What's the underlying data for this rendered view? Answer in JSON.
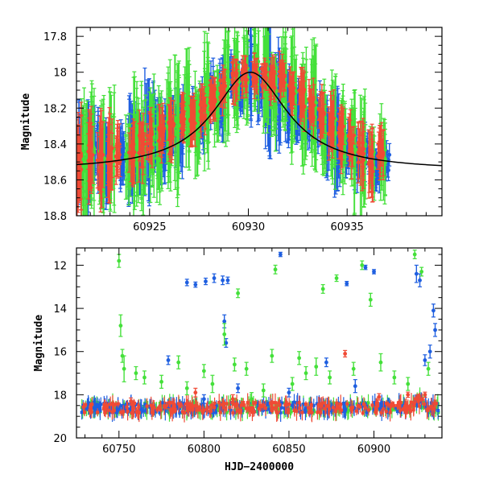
{
  "chart_data": [
    {
      "type": "scatter",
      "panel": "top",
      "title": "",
      "xlabel": "",
      "ylabel": "Magnitude",
      "xlim": [
        60921.3,
        60939.8
      ],
      "ylim": [
        18.8,
        17.75
      ],
      "y_inverted": true,
      "x_ticks": [
        60925,
        60930,
        60935
      ],
      "x_tick_labels": [
        "60925",
        "60930",
        "60935"
      ],
      "y_ticks": [
        17.8,
        18,
        18.2,
        18.4,
        18.6,
        18.8
      ],
      "y_tick_labels": [
        "17.8",
        "18",
        "18.2",
        "18.4",
        "18.6",
        "18.8"
      ],
      "series": [
        {
          "color": "#1f5fe0",
          "x": [
            60921.5,
            60921.9,
            60922.3,
            60922.8,
            60923.6,
            60924.0,
            60924.4,
            60924.9,
            60925.3,
            60925.7,
            60926.2,
            60926.6,
            60927.1,
            60927.6,
            60928.1,
            60928.6,
            60929.2,
            60929.6,
            60930.1,
            60930.6,
            60931.0,
            60931.5,
            60932.0,
            60932.5,
            60933.0,
            60933.5,
            60934.0,
            60934.5,
            60935.0,
            60935.5,
            60936.0,
            60936.5,
            60937.0
          ],
          "y": [
            18.45,
            18.5,
            18.4,
            18.52,
            18.48,
            18.45,
            18.42,
            18.38,
            18.33,
            18.4,
            18.3,
            18.32,
            18.22,
            18.25,
            18.12,
            18.15,
            18.05,
            18.1,
            18.0,
            18.12,
            18.05,
            18.12,
            18.2,
            18.22,
            18.28,
            18.25,
            18.35,
            18.4,
            18.45,
            18.5,
            18.45,
            18.55,
            18.5
          ],
          "err": [
            0.25,
            0.3,
            0.2,
            0.2,
            0.15,
            0.25,
            0.22,
            0.3,
            0.2,
            0.2,
            0.15,
            0.22,
            0.1,
            0.15,
            0.12,
            0.2,
            0.1,
            0.15,
            0.25,
            0.12,
            0.35,
            0.25,
            0.18,
            0.15,
            0.12,
            0.15,
            0.18,
            0.25,
            0.12,
            0.12,
            0.1,
            0.08,
            0.06
          ]
        },
        {
          "color": "#44e03a",
          "x": [
            60921.7,
            60922.1,
            60922.6,
            60923.1,
            60923.9,
            60924.3,
            60924.7,
            60925.1,
            60925.5,
            60926.0,
            60926.4,
            60926.9,
            60927.4,
            60927.9,
            60928.4,
            60928.9,
            60929.4,
            60929.9,
            60930.4,
            60930.9,
            60931.3,
            60931.8,
            60932.3,
            60932.8,
            60933.3,
            60933.8,
            60934.3,
            60934.8,
            60935.3,
            60935.8,
            60936.3,
            60936.8
          ],
          "y": [
            18.5,
            18.4,
            18.5,
            18.45,
            18.5,
            18.4,
            18.45,
            18.35,
            18.42,
            18.3,
            18.3,
            18.2,
            18.3,
            18.15,
            18.2,
            18.05,
            18.05,
            18.0,
            17.95,
            18.0,
            18.15,
            18.05,
            18.1,
            18.2,
            18.2,
            18.3,
            18.3,
            18.35,
            18.4,
            18.45,
            18.5,
            18.45
          ],
          "err": [
            0.35,
            0.3,
            0.3,
            0.3,
            0.2,
            0.35,
            0.3,
            0.3,
            0.25,
            0.3,
            0.35,
            0.28,
            0.25,
            0.3,
            0.2,
            0.28,
            0.25,
            0.22,
            0.2,
            0.3,
            0.25,
            0.22,
            0.3,
            0.28,
            0.3,
            0.22,
            0.28,
            0.25,
            0.3,
            0.3,
            0.15,
            0.2
          ]
        },
        {
          "color": "#f04a35",
          "x": [
            60921.4,
            60922.0,
            60922.5,
            60923.0,
            60923.4,
            60924.1,
            60924.6,
            60925.0,
            60925.6,
            60926.1,
            60926.7,
            60927.2,
            60927.7,
            60928.2,
            60928.7,
            60929.3,
            60929.8,
            60930.3,
            60930.8,
            60931.2,
            60931.7,
            60932.2,
            60932.7,
            60933.2,
            60933.7,
            60934.2,
            60934.7,
            60935.2,
            60935.7,
            60936.2,
            60936.7
          ],
          "y": [
            18.5,
            18.45,
            18.5,
            18.48,
            18.45,
            18.45,
            18.4,
            18.38,
            18.35,
            18.32,
            18.28,
            18.25,
            18.2,
            18.15,
            18.1,
            18.05,
            18.02,
            18.0,
            18.02,
            18.05,
            18.02,
            18.1,
            18.15,
            18.2,
            18.25,
            18.3,
            18.35,
            18.4,
            18.45,
            18.5,
            18.45
          ],
          "err": [
            0.3,
            0.2,
            0.25,
            0.2,
            0.12,
            0.15,
            0.15,
            0.12,
            0.12,
            0.12,
            0.1,
            0.12,
            0.1,
            0.1,
            0.08,
            0.1,
            0.08,
            0.08,
            0.06,
            0.08,
            0.1,
            0.1,
            0.12,
            0.1,
            0.12,
            0.15,
            0.15,
            0.12,
            0.15,
            0.18,
            0.12
          ]
        }
      ],
      "model_curve": {
        "color": "#000000",
        "baseline": 18.55,
        "peak_mag": 18.0,
        "peak_time": 60930.1,
        "width_days": 2.3,
        "x_range": [
          60921.3,
          60939.8
        ]
      }
    },
    {
      "type": "scatter",
      "panel": "bottom",
      "title": "",
      "xlabel": "HJD−2400000",
      "ylabel": "Magnitude",
      "xlim": [
        60725,
        60940
      ],
      "ylim": [
        20,
        11.2
      ],
      "y_inverted": true,
      "x_ticks": [
        60750,
        60800,
        60850,
        60900
      ],
      "x_tick_labels": [
        "60750",
        "60800",
        "60850",
        "60900"
      ],
      "y_ticks": [
        12,
        14,
        16,
        18,
        20
      ],
      "y_tick_labels": [
        "12",
        "14",
        "16",
        "18",
        "20"
      ],
      "baseline_band": {
        "x_range": [
          60728,
          60938
        ],
        "mag": 18.6,
        "scatter": 0.25
      },
      "series": [
        {
          "color": "#1f5fe0",
          "x": [
            60779,
            60790,
            60795,
            60801,
            60806,
            60811,
            60812,
            60813,
            60814,
            60845,
            60872,
            60884,
            60889,
            60895,
            60900,
            60925,
            60927,
            60930,
            60933,
            60935,
            60936,
            60800,
            60850,
            60820
          ],
          "y": [
            16.4,
            12.8,
            12.9,
            12.75,
            12.6,
            12.7,
            14.6,
            15.6,
            12.7,
            11.5,
            16.5,
            12.85,
            17.6,
            12.1,
            12.3,
            12.4,
            12.7,
            16.4,
            16.0,
            14.1,
            15.0,
            18.2,
            17.9,
            17.7
          ],
          "err": [
            0.2,
            0.15,
            0.12,
            0.15,
            0.2,
            0.2,
            0.3,
            0.2,
            0.15,
            0.1,
            0.2,
            0.1,
            0.3,
            0.1,
            0.1,
            0.4,
            0.3,
            0.25,
            0.3,
            0.3,
            0.3,
            0.2,
            0.2,
            0.2
          ]
        },
        {
          "color": "#44e03a",
          "x": [
            60750,
            60751,
            60752,
            60753,
            60765,
            60785,
            60790,
            60805,
            60812,
            60818,
            60820,
            60825,
            60828,
            60835,
            60842,
            60852,
            60856,
            60860,
            60866,
            60870,
            60874,
            60878,
            60888,
            60893,
            60898,
            60904,
            60912,
            60920,
            60924,
            60928,
            60932,
            60760,
            60775,
            60800,
            60840
          ],
          "y": [
            11.8,
            14.8,
            16.2,
            16.8,
            17.2,
            16.5,
            17.7,
            17.5,
            15.2,
            16.6,
            13.3,
            16.8,
            18.2,
            17.8,
            12.2,
            17.5,
            16.3,
            17.0,
            16.7,
            13.1,
            17.2,
            12.6,
            16.8,
            12.0,
            13.6,
            16.5,
            17.2,
            17.5,
            11.5,
            12.3,
            16.8,
            17.0,
            17.4,
            16.9,
            16.2
          ],
          "err": [
            0.3,
            0.5,
            0.3,
            0.6,
            0.3,
            0.3,
            0.3,
            0.4,
            0.5,
            0.3,
            0.2,
            0.3,
            0.3,
            0.3,
            0.2,
            0.3,
            0.3,
            0.3,
            0.4,
            0.2,
            0.3,
            0.15,
            0.3,
            0.2,
            0.3,
            0.4,
            0.3,
            0.3,
            0.2,
            0.2,
            0.3,
            0.3,
            0.3,
            0.3,
            0.3
          ]
        },
        {
          "color": "#f04a35",
          "x": [
            60757,
            60778,
            60795,
            60817,
            60883,
            60903,
            60920,
            60926,
            60930
          ],
          "y": [
            18.3,
            18.5,
            17.9,
            18.2,
            16.1,
            18.1,
            18.0,
            18.1,
            18.0
          ],
          "err": [
            0.15,
            0.15,
            0.2,
            0.2,
            0.15,
            0.15,
            0.12,
            0.12,
            0.12
          ]
        }
      ]
    }
  ]
}
